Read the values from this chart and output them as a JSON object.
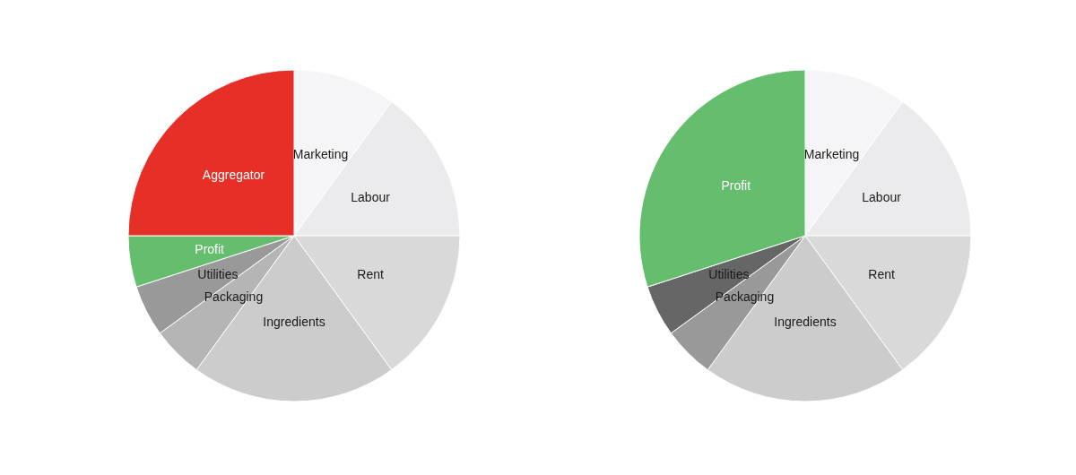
{
  "chart_data": [
    {
      "type": "pie",
      "categories": [
        "Marketing",
        "Labour",
        "Rent",
        "Ingredients",
        "Packaging",
        "Utilities",
        "Profit",
        "Aggregator"
      ],
      "values": [
        10,
        15,
        15,
        20,
        5,
        5,
        5,
        25
      ],
      "colors": [
        "#f5f5f7",
        "#ebebed",
        "#d9d9d9",
        "#cccccc",
        "#b5b5b5",
        "#999999",
        "#64be6e",
        "#e63027"
      ]
    },
    {
      "type": "pie",
      "categories": [
        "Marketing",
        "Labour",
        "Rent",
        "Ingredients",
        "Packaging",
        "Utilities",
        "Profit"
      ],
      "values": [
        10,
        15,
        15,
        20,
        5,
        5,
        30
      ],
      "colors": [
        "#f5f5f7",
        "#ebebed",
        "#d9d9d9",
        "#cccccc",
        "#999999",
        "#666666",
        "#64be6e"
      ]
    }
  ]
}
